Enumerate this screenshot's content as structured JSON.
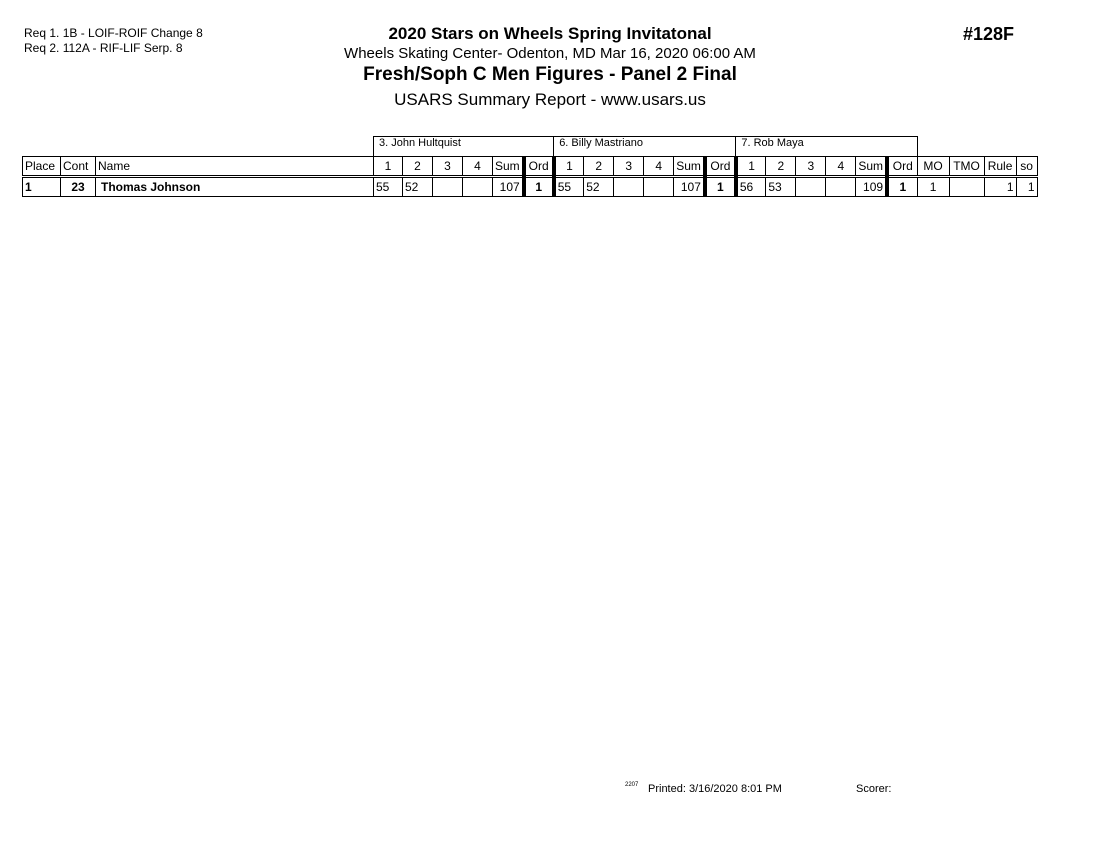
{
  "requirements": [
    "Req  1.  1B - LOIF-ROIF Change 8",
    "Req  2.  112A - RIF-LIF Serp. 8"
  ],
  "header": {
    "title": "2020 Stars on Wheels Spring Invitatonal",
    "venue": "Wheels Skating Center- Odenton, MD  Mar 16, 2020  06:00 AM",
    "event": "Fresh/Soph C Men Figures - Panel 2 Final",
    "report": "USARS Summary Report - www.usars.us",
    "event_number": "#128F"
  },
  "table": {
    "judges": [
      "3.  John  Hultquist",
      "6.  Billy Mastriano",
      "7.  Rob Maya"
    ],
    "columns": {
      "place": "Place",
      "cont": "Cont",
      "name": "Name",
      "judge_cols": [
        "1",
        "2",
        "3",
        "4",
        "Sum",
        "Ord"
      ],
      "mo": "MO",
      "tmo": "TMO",
      "rule": "Rule",
      "so": "so"
    },
    "rows": [
      {
        "place": "1",
        "cont": "23",
        "name": "Thomas Johnson",
        "judges": [
          [
            "55",
            "52",
            "",
            "",
            "107",
            "1"
          ],
          [
            "55",
            "52",
            "",
            "",
            "107",
            "1"
          ],
          [
            "56",
            "53",
            "",
            "",
            "109",
            "1"
          ]
        ],
        "mo": "1",
        "tmo": "",
        "rule": "1",
        "so": "1"
      }
    ]
  },
  "footer": {
    "version": "2207",
    "printed": "Printed:  3/16/2020  8:01 PM",
    "scorer": "Scorer:"
  }
}
